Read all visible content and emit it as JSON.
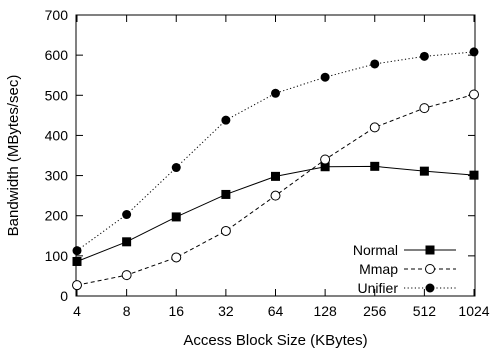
{
  "chart_data": {
    "type": "line",
    "xlabel": "Access Block Size (KBytes)",
    "ylabel": "Bandwidth (MBytes/sec)",
    "categories": [
      "4",
      "8",
      "16",
      "32",
      "64",
      "128",
      "256",
      "512",
      "1024"
    ],
    "ylim": [
      0,
      700
    ],
    "yticks": [
      "0",
      "100",
      "200",
      "300",
      "400",
      "500",
      "600",
      "700"
    ],
    "grid": false,
    "legend_position": "bottom-right",
    "series": [
      {
        "name": "Normal",
        "values": [
          86,
          135,
          197,
          253,
          298,
          322,
          323,
          311,
          301
        ],
        "line_style": "solid",
        "marker": "filled-square"
      },
      {
        "name": "Mmap",
        "values": [
          27,
          52,
          96,
          162,
          250,
          340,
          420,
          468,
          502
        ],
        "line_style": "dashed",
        "marker": "open-circle"
      },
      {
        "name": "Unifier",
        "values": [
          113,
          203,
          320,
          438,
          505,
          545,
          578,
          597,
          608
        ],
        "line_style": "dotted",
        "marker": "filled-circle"
      }
    ]
  }
}
